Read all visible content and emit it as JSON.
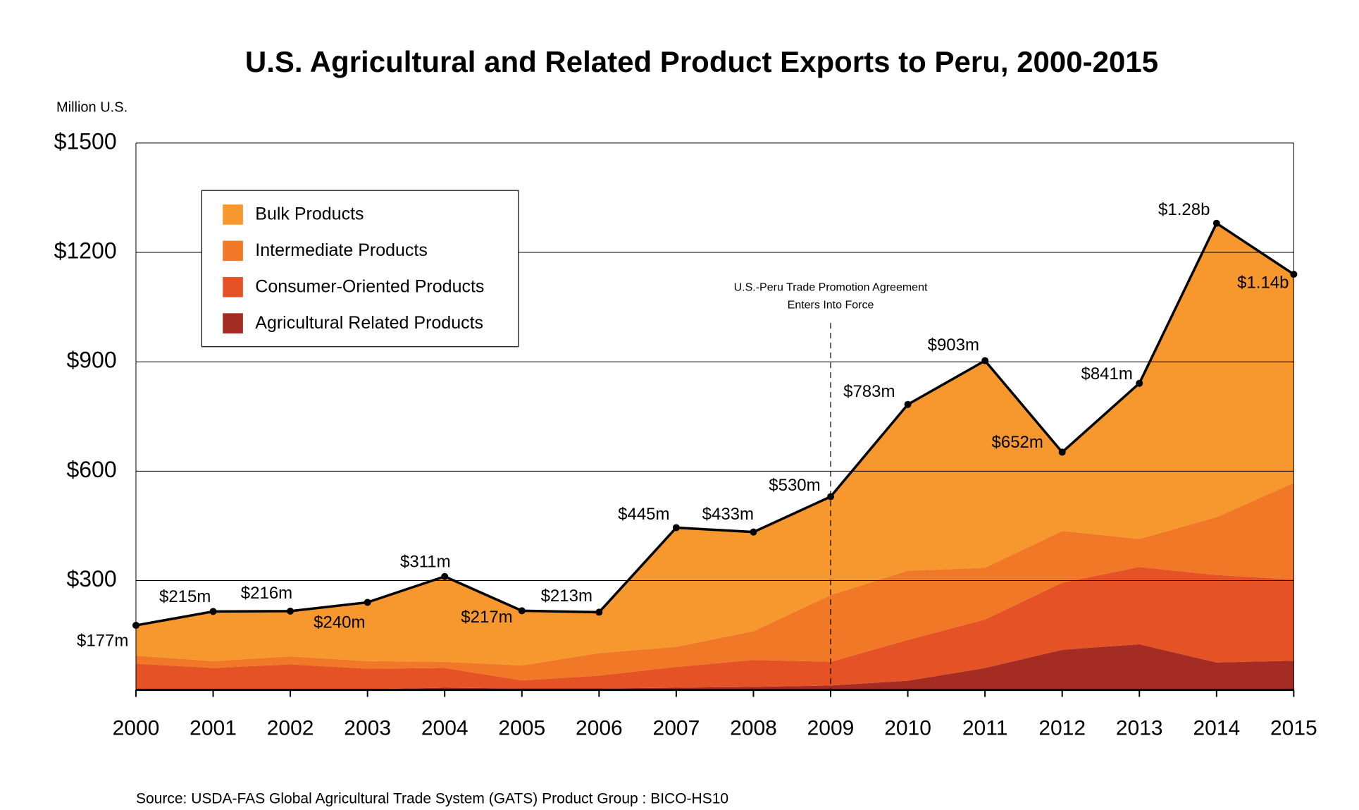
{
  "chart_data": {
    "type": "stacked-area",
    "title": "U.S. Agricultural and Related Product Exports to Peru, 2000-2015",
    "y_axis_label": "Million U.S.",
    "source": "Source:  USDA-FAS Global Agricultural Trade System (GATS)     Product Group : BICO-HS10",
    "categories": [
      "2000",
      "2001",
      "2002",
      "2003",
      "2004",
      "2005",
      "2006",
      "2007",
      "2008",
      "2009",
      "2010",
      "2011",
      "2012",
      "2013",
      "2014",
      "2015"
    ],
    "ylim": [
      0,
      1500
    ],
    "yticks": [
      {
        "value": 300,
        "label": "$300"
      },
      {
        "value": 600,
        "label": "$600"
      },
      {
        "value": 900,
        "label": "$900"
      },
      {
        "value": 1200,
        "label": "$1200"
      },
      {
        "value": 1500,
        "label": "$1500"
      }
    ],
    "grid": true,
    "legend": "upper left",
    "series": [
      {
        "name": "Agricultural Related Products",
        "color": "#a42c23",
        "values": [
          2,
          2,
          2,
          2,
          6,
          4,
          4,
          6,
          8,
          12,
          25,
          60,
          110,
          125,
          75,
          80
        ]
      },
      {
        "name": "Consumer-Oriented Products",
        "color": "#e55226",
        "values": [
          70,
          58,
          68,
          56,
          54,
          22,
          35,
          57,
          74,
          65,
          112,
          133,
          184,
          212,
          240,
          223
        ]
      },
      {
        "name": "Intermediate Products",
        "color": "#f07826",
        "values": [
          22,
          19,
          22,
          21,
          17,
          41,
          62,
          55,
          79,
          183,
          190,
          142,
          142,
          77,
          159,
          265
        ]
      },
      {
        "name": "Bulk Products",
        "color": "#f7982f",
        "values": [
          83,
          136,
          124,
          161,
          234,
          150,
          112,
          327,
          272,
          270,
          456,
          568,
          216,
          427,
          806,
          572
        ]
      }
    ],
    "total": {
      "color": "#000000",
      "values": [
        177,
        215,
        216,
        240,
        311,
        217,
        213,
        445,
        433,
        530,
        783,
        903,
        652,
        841,
        1280,
        1140
      ],
      "value_labels": [
        "$177m",
        "$215m",
        "$216m",
        "$240m",
        "$311m",
        "$217m",
        "$213m",
        "$445m",
        "$433m",
        "$530m",
        "$783m",
        "$903m",
        "$652m",
        "$841m",
        "$1.28b",
        "$1.14b"
      ]
    },
    "annotation": {
      "x": "2009",
      "lines": [
        "U.S.-Peru Trade Promotion Agreement",
        "Enters Into Force"
      ]
    }
  }
}
